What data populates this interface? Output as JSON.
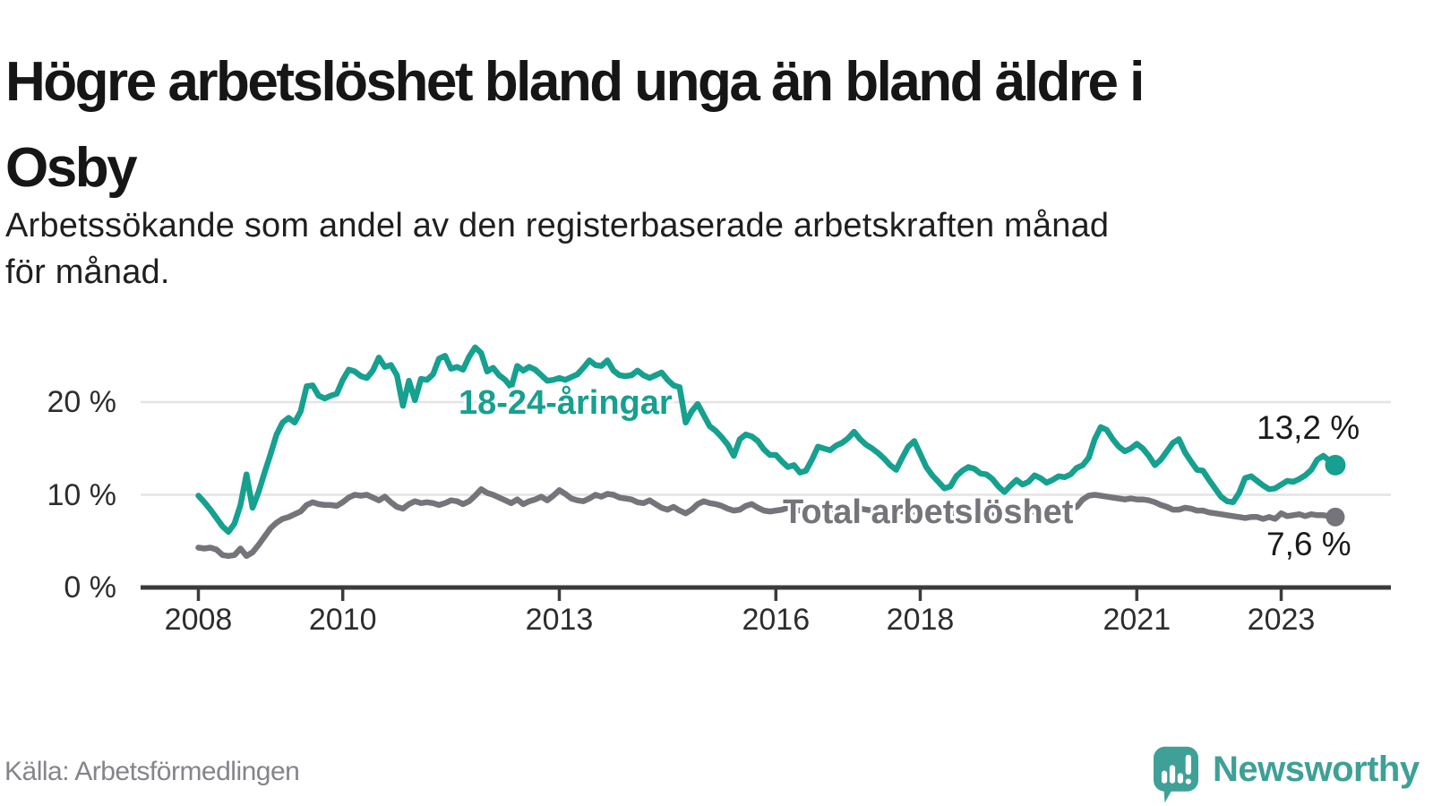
{
  "header": {
    "title": "Högre arbetslöshet bland unga än bland äldre i\nOsby",
    "subtitle": "Arbetssökande som andel av den registerbaserade arbetskraften månad\nför månad."
  },
  "footer": {
    "source": "Källa: Arbetsförmedlingen",
    "brand": "Newsworthy"
  },
  "colors": {
    "accent_teal": "#16A08F",
    "series_gray": "#75747A",
    "logo_teal": "#3EA096",
    "grid": "#E4E4E4",
    "axis": "#3B3B3B",
    "text_dark": "#1a1a1a",
    "muted": "#84848B"
  },
  "chart_data": {
    "type": "line",
    "title": "Högre arbetslöshet bland unga än bland äldre i Osby",
    "subtitle": "Arbetssökande som andel av den registerbaserade arbetskraften månad för månad.",
    "source": "Källa: Arbetsförmedlingen",
    "legend_position": "inline-labels",
    "x_axis": {
      "frequency": "monthly",
      "start": "2008-01",
      "end": "2023-10",
      "tick_years": [
        2008,
        2010,
        2013,
        2016,
        2018,
        2021,
        2023
      ],
      "tick_labels": [
        "2008",
        "2010",
        "2013",
        "2016",
        "2018",
        "2021",
        "2023"
      ]
    },
    "y_axis": {
      "ticks": [
        0,
        10,
        20
      ],
      "tick_labels": [
        "0 %",
        "10 %",
        "20 %"
      ],
      "ylim": [
        0,
        27
      ],
      "grid": true,
      "unit": "percent"
    },
    "series": [
      {
        "name": "18-24-åringar",
        "color": "#16A08F",
        "end_label": "13,2 %",
        "end_value": 13.2,
        "values": [
          9.9,
          9.2,
          8.4,
          7.5,
          6.6,
          6.0,
          6.9,
          8.9,
          12.2,
          8.6,
          10.3,
          12.4,
          14.4,
          16.5,
          17.8,
          18.3,
          17.8,
          19.0,
          21.7,
          21.8,
          20.7,
          20.4,
          20.7,
          20.9,
          22.4,
          23.5,
          23.3,
          22.8,
          22.6,
          23.4,
          24.8,
          23.8,
          24.0,
          22.9,
          19.6,
          22.3,
          20.2,
          22.5,
          22.4,
          23.0,
          24.7,
          25.0,
          23.6,
          23.8,
          23.5,
          24.9,
          25.9,
          25.3,
          23.3,
          23.7,
          22.9,
          22.4,
          21.6,
          23.9,
          23.4,
          23.8,
          23.5,
          22.9,
          22.3,
          22.4,
          22.6,
          22.4,
          22.7,
          23.0,
          23.7,
          24.5,
          24.0,
          23.9,
          24.5,
          23.4,
          22.9,
          22.8,
          22.9,
          23.4,
          22.9,
          22.6,
          22.9,
          23.2,
          22.4,
          21.8,
          21.6,
          17.8,
          19.0,
          19.8,
          18.6,
          17.4,
          16.9,
          16.2,
          15.4,
          14.2,
          16.0,
          16.5,
          16.3,
          15.8,
          14.9,
          14.3,
          14.3,
          13.6,
          13.0,
          13.2,
          12.4,
          12.6,
          13.8,
          15.2,
          15.0,
          14.8,
          15.3,
          15.6,
          16.1,
          16.8,
          16.0,
          15.4,
          15.0,
          14.5,
          13.9,
          13.2,
          12.7,
          14.0,
          15.2,
          15.8,
          14.4,
          13.0,
          12.1,
          11.4,
          10.7,
          10.9,
          12.0,
          12.6,
          13.0,
          12.8,
          12.3,
          12.2,
          11.7,
          10.9,
          10.3,
          11.0,
          11.6,
          11.1,
          11.4,
          12.1,
          11.8,
          11.3,
          11.6,
          12.0,
          11.9,
          12.2,
          12.9,
          13.2,
          14.0,
          16.0,
          17.3,
          17.0,
          16.0,
          15.2,
          14.7,
          15.0,
          15.5,
          15.0,
          14.2,
          13.2,
          13.8,
          14.7,
          15.6,
          16.0,
          14.6,
          13.6,
          12.7,
          12.6,
          11.6,
          10.7,
          9.8,
          9.3,
          9.2,
          10.2,
          11.8,
          12.0,
          11.5,
          11.0,
          10.6,
          10.7,
          11.1,
          11.5,
          11.4,
          11.7,
          12.1,
          12.7,
          13.8,
          14.2,
          13.7,
          13.2
        ]
      },
      {
        "name": "Total arbetslöshet",
        "color": "#75747A",
        "end_label": "7,6 %",
        "end_value": 7.6,
        "values": [
          4.3,
          4.2,
          4.3,
          4.1,
          3.5,
          3.4,
          3.5,
          4.2,
          3.4,
          3.8,
          4.6,
          5.5,
          6.4,
          7.0,
          7.4,
          7.6,
          7.9,
          8.2,
          8.9,
          9.2,
          9.0,
          8.9,
          8.9,
          8.8,
          9.2,
          9.7,
          10.0,
          9.9,
          10.0,
          9.7,
          9.4,
          9.8,
          9.2,
          8.7,
          8.5,
          9.0,
          9.3,
          9.1,
          9.2,
          9.1,
          8.9,
          9.1,
          9.4,
          9.3,
          9.0,
          9.3,
          9.9,
          10.6,
          10.2,
          10.0,
          9.7,
          9.4,
          9.1,
          9.5,
          9.0,
          9.3,
          9.5,
          9.8,
          9.4,
          9.9,
          10.5,
          10.1,
          9.6,
          9.4,
          9.3,
          9.6,
          10.0,
          9.8,
          10.1,
          10.0,
          9.7,
          9.6,
          9.5,
          9.2,
          9.1,
          9.4,
          9.0,
          8.6,
          8.4,
          8.7,
          8.3,
          8.0,
          8.4,
          9.0,
          9.3,
          9.1,
          9.0,
          8.8,
          8.5,
          8.3,
          8.4,
          8.8,
          9.0,
          8.6,
          8.3,
          8.2,
          8.3,
          8.4,
          8.6,
          8.4,
          8.3,
          8.4,
          8.5,
          8.7,
          8.6,
          8.4,
          8.3,
          8.4,
          8.5,
          8.6,
          8.5,
          8.4,
          8.3,
          8.2,
          8.3,
          8.5,
          8.4,
          8.2,
          8.1,
          8.2,
          8.2,
          8.1,
          8.0,
          7.9,
          7.8,
          7.9,
          8.0,
          8.1,
          8.0,
          7.9,
          7.8,
          7.9,
          8.0,
          7.9,
          7.8,
          7.9,
          8.0,
          8.1,
          8.2,
          8.2,
          8.1,
          8.2,
          8.3,
          8.4,
          8.4,
          8.5,
          8.7,
          9.5,
          9.9,
          10.0,
          9.9,
          9.8,
          9.7,
          9.6,
          9.5,
          9.6,
          9.5,
          9.5,
          9.4,
          9.2,
          8.9,
          8.7,
          8.4,
          8.4,
          8.6,
          8.5,
          8.3,
          8.3,
          8.1,
          8.0,
          7.9,
          7.8,
          7.7,
          7.6,
          7.5,
          7.6,
          7.6,
          7.4,
          7.6,
          7.4,
          8.0,
          7.7,
          7.8,
          7.9,
          7.7,
          7.9,
          7.8,
          7.8,
          7.7,
          7.6
        ]
      }
    ]
  }
}
